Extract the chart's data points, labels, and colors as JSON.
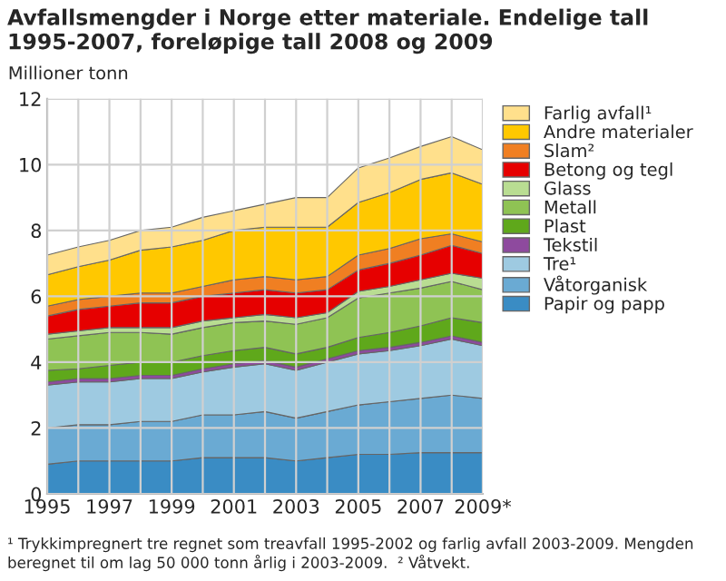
{
  "chart_data": {
    "type": "area",
    "stacked": true,
    "title": "Avfallsmengder i Norge etter materiale. Endelige tall 1995-2007, foreløpige tall 2008 og 2009",
    "ylabel": "Millioner tonn",
    "x": [
      1995,
      1996,
      1997,
      1998,
      1999,
      2000,
      2001,
      2002,
      2003,
      2004,
      2005,
      2006,
      2007,
      2008,
      2009
    ],
    "series": [
      {
        "name": "Papir og papp",
        "color": "#3a8cc4",
        "values": [
          0.9,
          1.0,
          1.0,
          1.0,
          1.0,
          1.1,
          1.1,
          1.1,
          1.0,
          1.1,
          1.2,
          1.2,
          1.25,
          1.25,
          1.25
        ]
      },
      {
        "name": "Våtorganisk",
        "color": "#6aaad3",
        "values": [
          1.1,
          1.1,
          1.1,
          1.2,
          1.2,
          1.3,
          1.3,
          1.4,
          1.3,
          1.4,
          1.5,
          1.6,
          1.65,
          1.75,
          1.65
        ]
      },
      {
        "name": "Tre¹",
        "color": "#9ecae1",
        "values": [
          1.3,
          1.3,
          1.3,
          1.3,
          1.3,
          1.3,
          1.45,
          1.45,
          1.45,
          1.5,
          1.55,
          1.55,
          1.6,
          1.7,
          1.6
        ]
      },
      {
        "name": "Tekstil",
        "color": "#8e4a9e",
        "values": [
          0.1,
          0.1,
          0.1,
          0.1,
          0.1,
          0.1,
          0.1,
          0.1,
          0.1,
          0.1,
          0.1,
          0.1,
          0.1,
          0.1,
          0.1
        ]
      },
      {
        "name": "Plast",
        "color": "#5fa81b",
        "values": [
          0.35,
          0.3,
          0.4,
          0.4,
          0.4,
          0.4,
          0.4,
          0.4,
          0.4,
          0.35,
          0.4,
          0.45,
          0.5,
          0.55,
          0.6
        ]
      },
      {
        "name": "Metall",
        "color": "#8fc354",
        "values": [
          0.95,
          1.0,
          1.0,
          0.9,
          0.85,
          0.85,
          0.85,
          0.8,
          0.9,
          0.9,
          1.2,
          1.2,
          1.15,
          1.1,
          1.0
        ]
      },
      {
        "name": "Glass",
        "color": "#b9dd92",
        "values": [
          0.15,
          0.15,
          0.15,
          0.15,
          0.2,
          0.2,
          0.15,
          0.2,
          0.2,
          0.15,
          0.2,
          0.2,
          0.25,
          0.25,
          0.35
        ]
      },
      {
        "name": "Betong og tegl",
        "color": "#e60000",
        "values": [
          0.55,
          0.65,
          0.65,
          0.75,
          0.75,
          0.75,
          0.75,
          0.75,
          0.75,
          0.7,
          0.65,
          0.7,
          0.75,
          0.85,
          0.75
        ]
      },
      {
        "name": "Slam²",
        "color": "#f07f22",
        "values": [
          0.3,
          0.3,
          0.3,
          0.3,
          0.3,
          0.3,
          0.4,
          0.4,
          0.4,
          0.4,
          0.45,
          0.45,
          0.5,
          0.35,
          0.35
        ]
      },
      {
        "name": "Andre materialer",
        "color": "#ffc800",
        "values": [
          0.95,
          1.0,
          1.1,
          1.3,
          1.4,
          1.4,
          1.5,
          1.5,
          1.6,
          1.5,
          1.6,
          1.7,
          1.8,
          1.85,
          1.75
        ]
      },
      {
        "name": "Farlig avfall¹",
        "color": "#ffe08c",
        "values": [
          0.6,
          0.6,
          0.6,
          0.6,
          0.6,
          0.7,
          0.6,
          0.7,
          0.9,
          0.9,
          1.05,
          1.05,
          1.0,
          1.1,
          1.05
        ]
      }
    ],
    "xlim": [
      1995,
      2009
    ],
    "xticks": [
      1995,
      {
        "value": 1996,
        "label": null
      },
      1997,
      {
        "value": 1998,
        "label": null
      },
      1999,
      {
        "value": 2000,
        "label": null
      },
      2001,
      {
        "value": 2002,
        "label": null
      },
      2003,
      {
        "value": 2004,
        "label": null
      },
      2005,
      {
        "value": 2006,
        "label": null
      },
      2007,
      {
        "value": 2008,
        "label": null
      },
      {
        "value": 2009,
        "label": "2009*"
      }
    ],
    "ylim": [
      0,
      12
    ],
    "yticks": [
      0,
      2,
      4,
      6,
      8,
      10,
      12
    ],
    "grid": true,
    "legend": "right",
    "annotations": [
      "¹ Trykkimpregnert tre regnet som treavfall 1995-2002 og farlig avfall 2003-2009. Mengden beregnet til om lag 50 000 tonn årlig i 2003-2009.  ² Våtvekt."
    ]
  }
}
